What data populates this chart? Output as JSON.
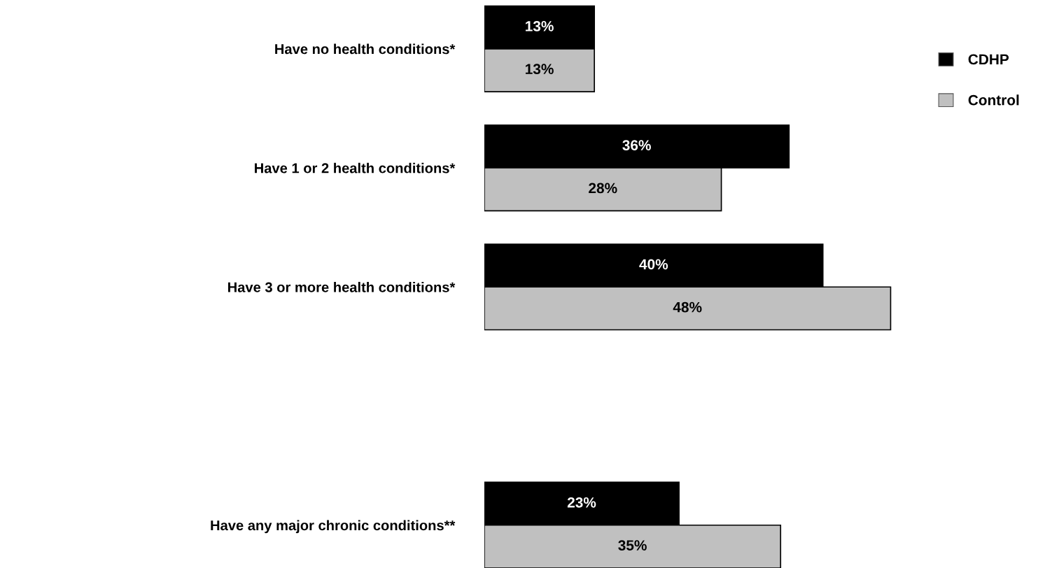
{
  "chart_data": {
    "type": "bar",
    "orientation": "horizontal",
    "categories": [
      "Have no health conditions*",
      "Have 1 or 2 health conditions*",
      "Have 3 or more health conditions*",
      null,
      "Have any major chronic conditions**"
    ],
    "series": [
      {
        "name": "CDHP",
        "color": "#000000",
        "values": [
          13,
          36,
          40,
          null,
          23
        ],
        "value_labels": [
          "13%",
          "36%",
          "40%",
          null,
          "23%"
        ]
      },
      {
        "name": "Control",
        "color": "#c0c0c0",
        "values": [
          13,
          28,
          48,
          null,
          35
        ],
        "value_labels": [
          "13%",
          "28%",
          "48%",
          null,
          "35%"
        ]
      }
    ],
    "tick_labels": "y",
    "grid": false,
    "legend": "top right"
  }
}
